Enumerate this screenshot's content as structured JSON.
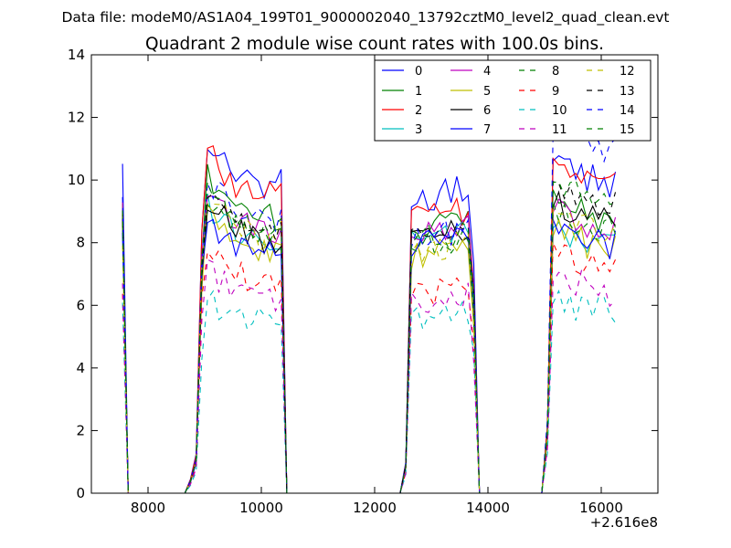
{
  "chart_data": {
    "type": "line",
    "suptitle": "Data file: modeM0/AS1A04_199T01_9000002040_13792cztM0_level2_quad_clean.evt",
    "title": "Quadrant 2 module wise count rates with 100.0s bins.",
    "xlabel": "",
    "ylabel": "",
    "x_offset_label": "+2.616e8",
    "xlim": [
      7000,
      17000
    ],
    "ylim": [
      0,
      14
    ],
    "xticks": [
      8000,
      10000,
      12000,
      14000,
      16000
    ],
    "xtick_labels": [
      "8000",
      "10000",
      "12000",
      "14000",
      "16000"
    ],
    "yticks": [
      0,
      2,
      4,
      6,
      8,
      10,
      12,
      14
    ],
    "ytick_labels": [
      "0",
      "2",
      "4",
      "6",
      "8",
      "10",
      "12",
      "14"
    ],
    "legend_position": "upper right",
    "segments": [
      {
        "x_start": 7550,
        "x_end": 7850,
        "x_step": 100,
        "shape": [
          1.0,
          0.0,
          0.0,
          0.0
        ]
      },
      {
        "x_start": 8650,
        "x_end": 10450,
        "x_step": 100,
        "shape": [
          0.0,
          0.04,
          0.11,
          0.75,
          1.0,
          0.97,
          0.95,
          0.93,
          0.92,
          0.9,
          0.9,
          0.88,
          0.88,
          0.87,
          0.86,
          0.87,
          0.86,
          0.87,
          0.0
        ]
      },
      {
        "x_start": 12450,
        "x_end": 13950,
        "x_step": 100,
        "shape": [
          0.0,
          0.1,
          0.93,
          0.95,
          0.94,
          0.96,
          0.95,
          0.96,
          0.97,
          0.96,
          0.98,
          0.97,
          0.99,
          0.7,
          0.0,
          0.0
        ]
      },
      {
        "x_start": 14950,
        "x_end": 16250,
        "x_step": 100,
        "shape": [
          0.0,
          0.2,
          1.0,
          0.98,
          0.96,
          0.95,
          0.93,
          0.94,
          0.92,
          0.93,
          0.91,
          0.92,
          0.9,
          0.92
        ]
      }
    ],
    "series": [
      {
        "name": "0",
        "color": "#0000ff",
        "dash": "solid",
        "levels": [
          10.3,
          11.4,
          9.9,
          10.8
        ]
      },
      {
        "name": "1",
        "color": "#008000",
        "dash": "solid",
        "levels": [
          9.2,
          10.2,
          8.9,
          9.6
        ]
      },
      {
        "name": "2",
        "color": "#ff0000",
        "dash": "solid",
        "levels": [
          9.1,
          11.0,
          9.3,
          10.8
        ]
      },
      {
        "name": "3",
        "color": "#00bfbf",
        "dash": "solid",
        "levels": [
          8.6,
          9.3,
          8.6,
          8.7
        ]
      },
      {
        "name": "4",
        "color": "#bf00bf",
        "dash": "solid",
        "levels": [
          9.0,
          9.7,
          8.8,
          9.2
        ]
      },
      {
        "name": "5",
        "color": "#bfbf00",
        "dash": "solid",
        "levels": [
          8.5,
          8.9,
          8.0,
          8.6
        ]
      },
      {
        "name": "6",
        "color": "#000000",
        "dash": "solid",
        "levels": [
          8.8,
          9.4,
          8.7,
          9.5
        ]
      },
      {
        "name": "7",
        "color": "#0000ff",
        "dash": "solid",
        "levels": [
          8.3,
          8.8,
          8.4,
          8.8
        ]
      },
      {
        "name": "8",
        "color": "#008000",
        "dash": "dashed",
        "levels": [
          8.9,
          9.5,
          8.3,
          9.3
        ]
      },
      {
        "name": "9",
        "color": "#ff0000",
        "dash": "dashed",
        "levels": [
          6.8,
          7.8,
          6.7,
          7.9
        ]
      },
      {
        "name": "10",
        "color": "#00bfbf",
        "dash": "dashed",
        "levels": [
          6.0,
          6.3,
          5.9,
          6.4
        ]
      },
      {
        "name": "11",
        "color": "#bf00bf",
        "dash": "dashed",
        "levels": [
          6.6,
          7.2,
          6.4,
          7.1
        ]
      },
      {
        "name": "12",
        "color": "#bfbf00",
        "dash": "dashed",
        "levels": [
          8.0,
          9.5,
          8.1,
          9.2
        ]
      },
      {
        "name": "13",
        "color": "#000000",
        "dash": "dashed",
        "levels": [
          8.7,
          9.6,
          8.8,
          10.0
        ]
      },
      {
        "name": "14",
        "color": "#0000ff",
        "dash": "dashed",
        "levels": [
          9.6,
          10.1,
          8.7,
          11.9
        ]
      },
      {
        "name": "15",
        "color": "#008000",
        "dash": "dashed",
        "levels": [
          9.1,
          9.6,
          8.5,
          10.3
        ]
      }
    ],
    "grid": false
  }
}
